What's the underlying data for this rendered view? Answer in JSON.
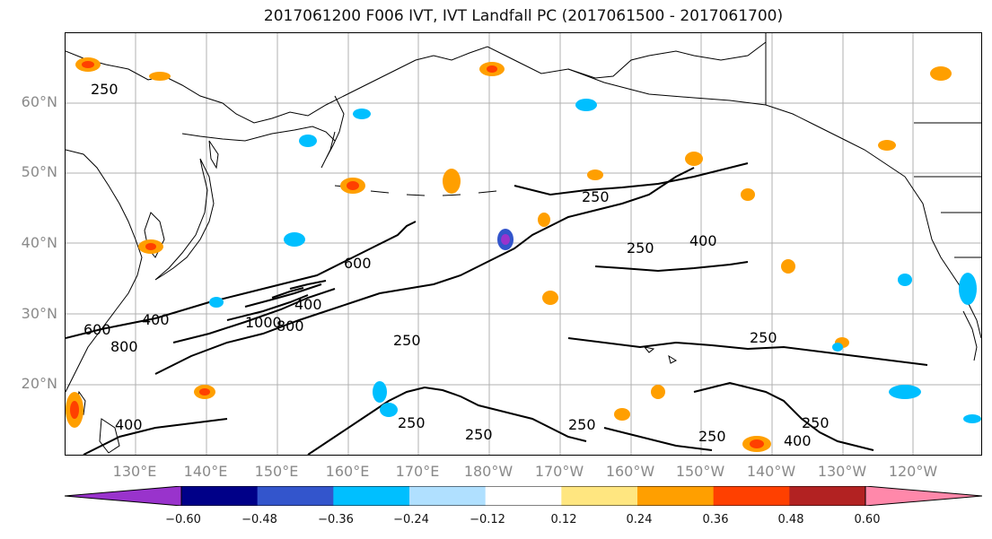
{
  "title": "2017061200 F006 IVT, IVT Landfall PC (2017061500 - 2017061700)",
  "map": {
    "lat_ticks": [
      "60°N",
      "50°N",
      "40°N",
      "30°N",
      "20°N"
    ],
    "lon_ticks": [
      "130°E",
      "140°E",
      "150°E",
      "160°E",
      "170°E",
      "180°W",
      "170°W",
      "160°W",
      "150°W",
      "140°W",
      "130°W",
      "120°W"
    ],
    "contour_labels": [
      "250",
      "250",
      "250",
      "400",
      "600",
      "400",
      "600",
      "800",
      "1000",
      "800",
      "400",
      "250",
      "250",
      "250",
      "250",
      "250",
      "250",
      "400",
      "400",
      "250"
    ],
    "land_color": "#ffffff",
    "grid_color": "#b0b0b0"
  },
  "colorbar": {
    "labels": [
      "−0.60",
      "−0.48",
      "−0.36",
      "−0.24",
      "−0.12",
      "0.12",
      "0.24",
      "0.36",
      "0.48",
      "0.60"
    ],
    "colors": [
      "#9933cc",
      "#000088",
      "#3355cc",
      "#00bfff",
      "#b0e0ff",
      "#ffffff",
      "#ffe680",
      "#ff9f00",
      "#ff4000",
      "#b22222",
      "#ff88aa"
    ]
  }
}
